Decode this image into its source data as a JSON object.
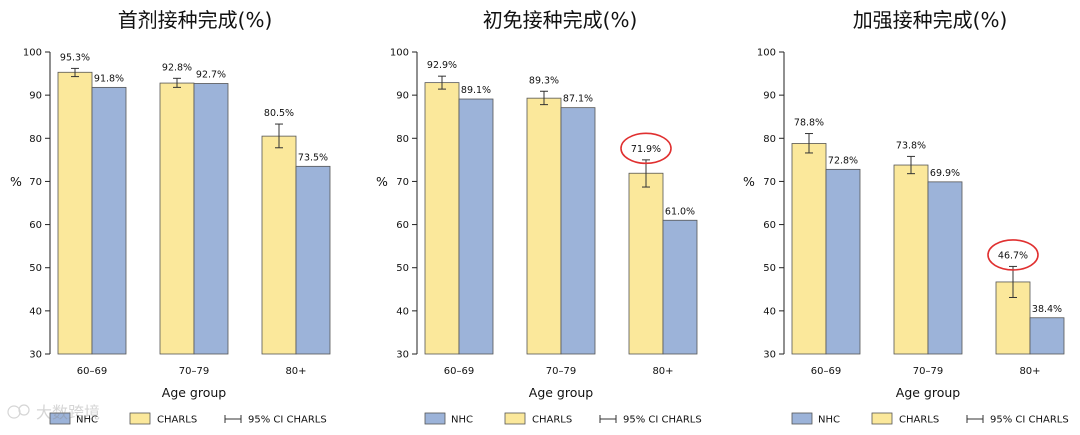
{
  "chart_data": [
    {
      "type": "bar",
      "title": "首剂接种完成(%)",
      "xlabel": "Age group",
      "ylabel": "%",
      "ylim": [
        30,
        100
      ],
      "yticks": [
        30,
        40,
        50,
        60,
        70,
        80,
        90,
        100
      ],
      "categories": [
        "60–69",
        "70–79",
        "80+"
      ],
      "series": [
        {
          "name": "CHARLS",
          "color": "#FBE89B",
          "values": [
            95.3,
            92.8,
            80.5
          ],
          "labels": [
            "95.3%",
            "92.8%",
            "80.5%"
          ],
          "ci_low": [
            94.3,
            91.8,
            77.8
          ],
          "ci_high": [
            96.2,
            93.9,
            83.3
          ]
        },
        {
          "name": "NHC",
          "color": "#9CB3D9",
          "values": [
            91.8,
            92.7,
            73.5
          ],
          "labels": [
            "91.8%",
            "92.7%",
            "73.5%"
          ]
        }
      ],
      "legend": [
        "NHC",
        "CHARLS",
        "95% CI CHARLS"
      ],
      "highlighted": []
    },
    {
      "type": "bar",
      "title": "初免接种完成(%)",
      "xlabel": "Age group",
      "ylabel": "%",
      "ylim": [
        30,
        100
      ],
      "yticks": [
        30,
        40,
        50,
        60,
        70,
        80,
        90,
        100
      ],
      "categories": [
        "60–69",
        "70–79",
        "80+"
      ],
      "series": [
        {
          "name": "CHARLS",
          "color": "#FBE89B",
          "values": [
            92.9,
            89.3,
            71.9
          ],
          "labels": [
            "92.9%",
            "89.3%",
            "71.9%"
          ],
          "ci_low": [
            91.4,
            87.8,
            68.7
          ],
          "ci_high": [
            94.4,
            90.9,
            75.0
          ]
        },
        {
          "name": "NHC",
          "color": "#9CB3D9",
          "values": [
            89.1,
            87.1,
            61.0
          ],
          "labels": [
            "89.1%",
            "87.1%",
            "61.0%"
          ]
        }
      ],
      "legend": [
        "NHC",
        "CHARLS",
        "95% CI CHARLS"
      ],
      "highlighted": [
        "71.9%"
      ]
    },
    {
      "type": "bar",
      "title": "加强接种完成(%)",
      "xlabel": "Age group",
      "ylabel": "%",
      "ylim": [
        30,
        100
      ],
      "yticks": [
        30,
        40,
        50,
        60,
        70,
        80,
        90,
        100
      ],
      "categories": [
        "60–69",
        "70–79",
        "80+"
      ],
      "series": [
        {
          "name": "CHARLS",
          "color": "#FBE89B",
          "values": [
            78.8,
            73.8,
            46.7
          ],
          "labels": [
            "78.8%",
            "73.8%",
            "46.7%"
          ],
          "ci_low": [
            76.6,
            71.8,
            43.1
          ],
          "ci_high": [
            81.1,
            75.8,
            50.3
          ]
        },
        {
          "name": "NHC",
          "color": "#9CB3D9",
          "values": [
            72.8,
            69.9,
            38.4
          ],
          "labels": [
            "72.8%",
            "69.9%",
            "38.4%"
          ]
        }
      ],
      "legend": [
        "NHC",
        "CHARLS",
        "95% CI CHARLS"
      ],
      "highlighted": [
        "46.7%"
      ]
    }
  ],
  "watermark": "大数跨境",
  "colors": {
    "charls": "#FBE89B",
    "nhc": "#9CB3D9",
    "bar_edge": "#555555",
    "highlight": "#E03030"
  }
}
